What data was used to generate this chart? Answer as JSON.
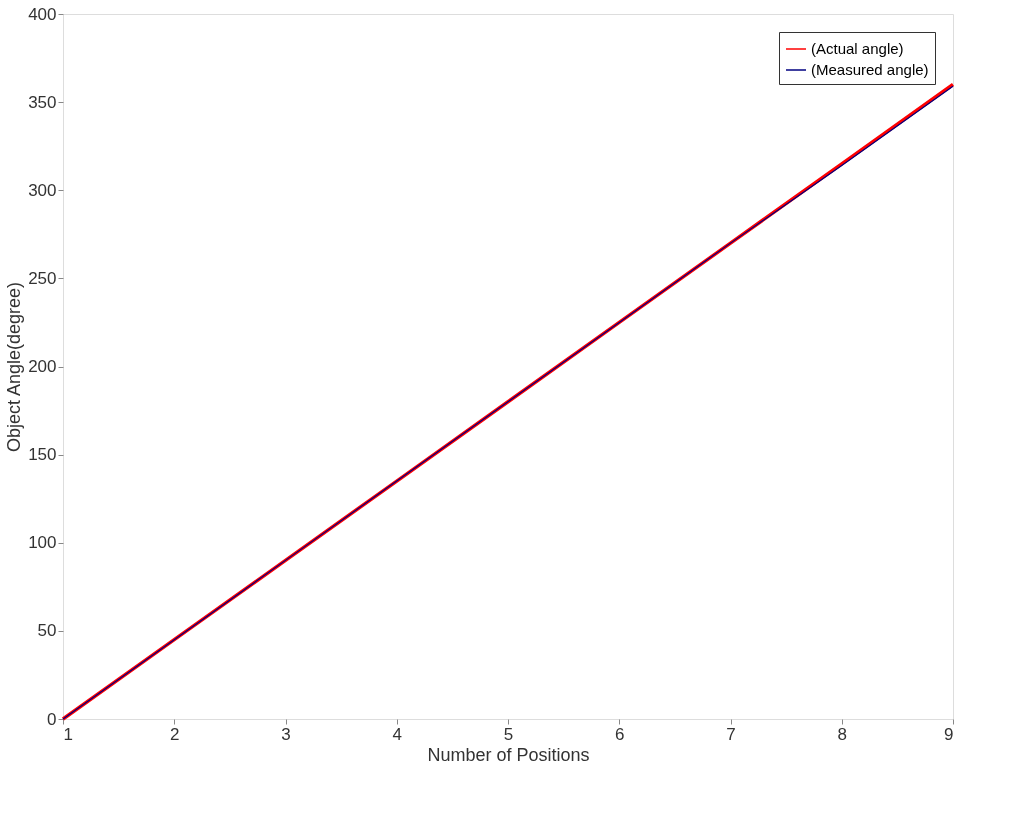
{
  "chart_data": {
    "type": "line",
    "xlabel": "Number of Positions",
    "ylabel": "Object Angle(degree)",
    "x": [
      1,
      2,
      3,
      4,
      5,
      6,
      7,
      8,
      9
    ],
    "series": [
      {
        "name": "(Actual angle)",
        "color": "#ff0000",
        "values": [
          0,
          45,
          90,
          135,
          180,
          225,
          270,
          315,
          360
        ]
      },
      {
        "name": "(Measured angle)",
        "color": "#000080",
        "values": [
          0,
          45,
          90,
          135,
          180,
          225,
          270,
          314,
          359
        ]
      }
    ],
    "xlim": [
      1,
      9
    ],
    "xticks": [
      1,
      2,
      3,
      4,
      5,
      6,
      7,
      8,
      9
    ],
    "ylim": [
      0,
      400
    ],
    "yticks": [
      0,
      50,
      100,
      150,
      200,
      250,
      300,
      350,
      400
    ],
    "grid": false,
    "legend": "top right",
    "marker": "none",
    "line_style": "solid"
  }
}
